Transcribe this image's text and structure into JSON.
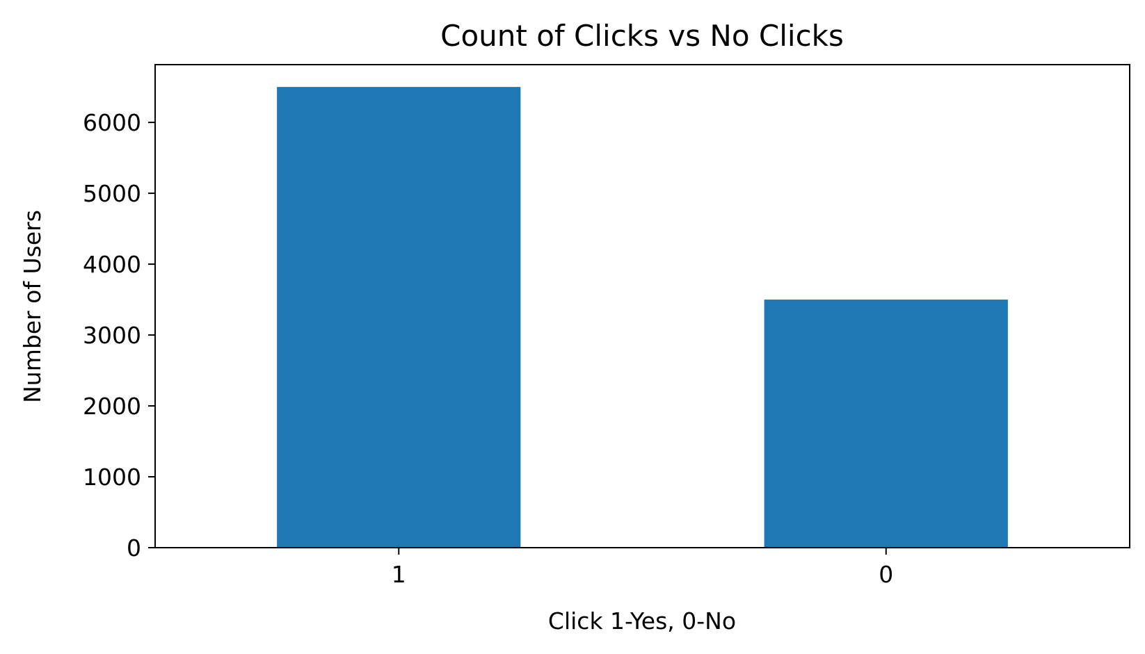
{
  "chart_data": {
    "type": "bar",
    "title": "Count of Clicks vs No Clicks",
    "xlabel": "Click 1-Yes, 0-No",
    "ylabel": "Number of Users",
    "categories": [
      "1",
      "0"
    ],
    "values": [
      6500,
      3500
    ],
    "ylim": [
      0,
      6815
    ],
    "yticks": [
      0,
      1000,
      2000,
      3000,
      4000,
      5000,
      6000
    ],
    "ytick_labels": [
      "0",
      "1000",
      "2000",
      "3000",
      "4000",
      "5000",
      "6000"
    ],
    "grid": false,
    "legend": "none",
    "bar_color": "#1f77b4"
  }
}
